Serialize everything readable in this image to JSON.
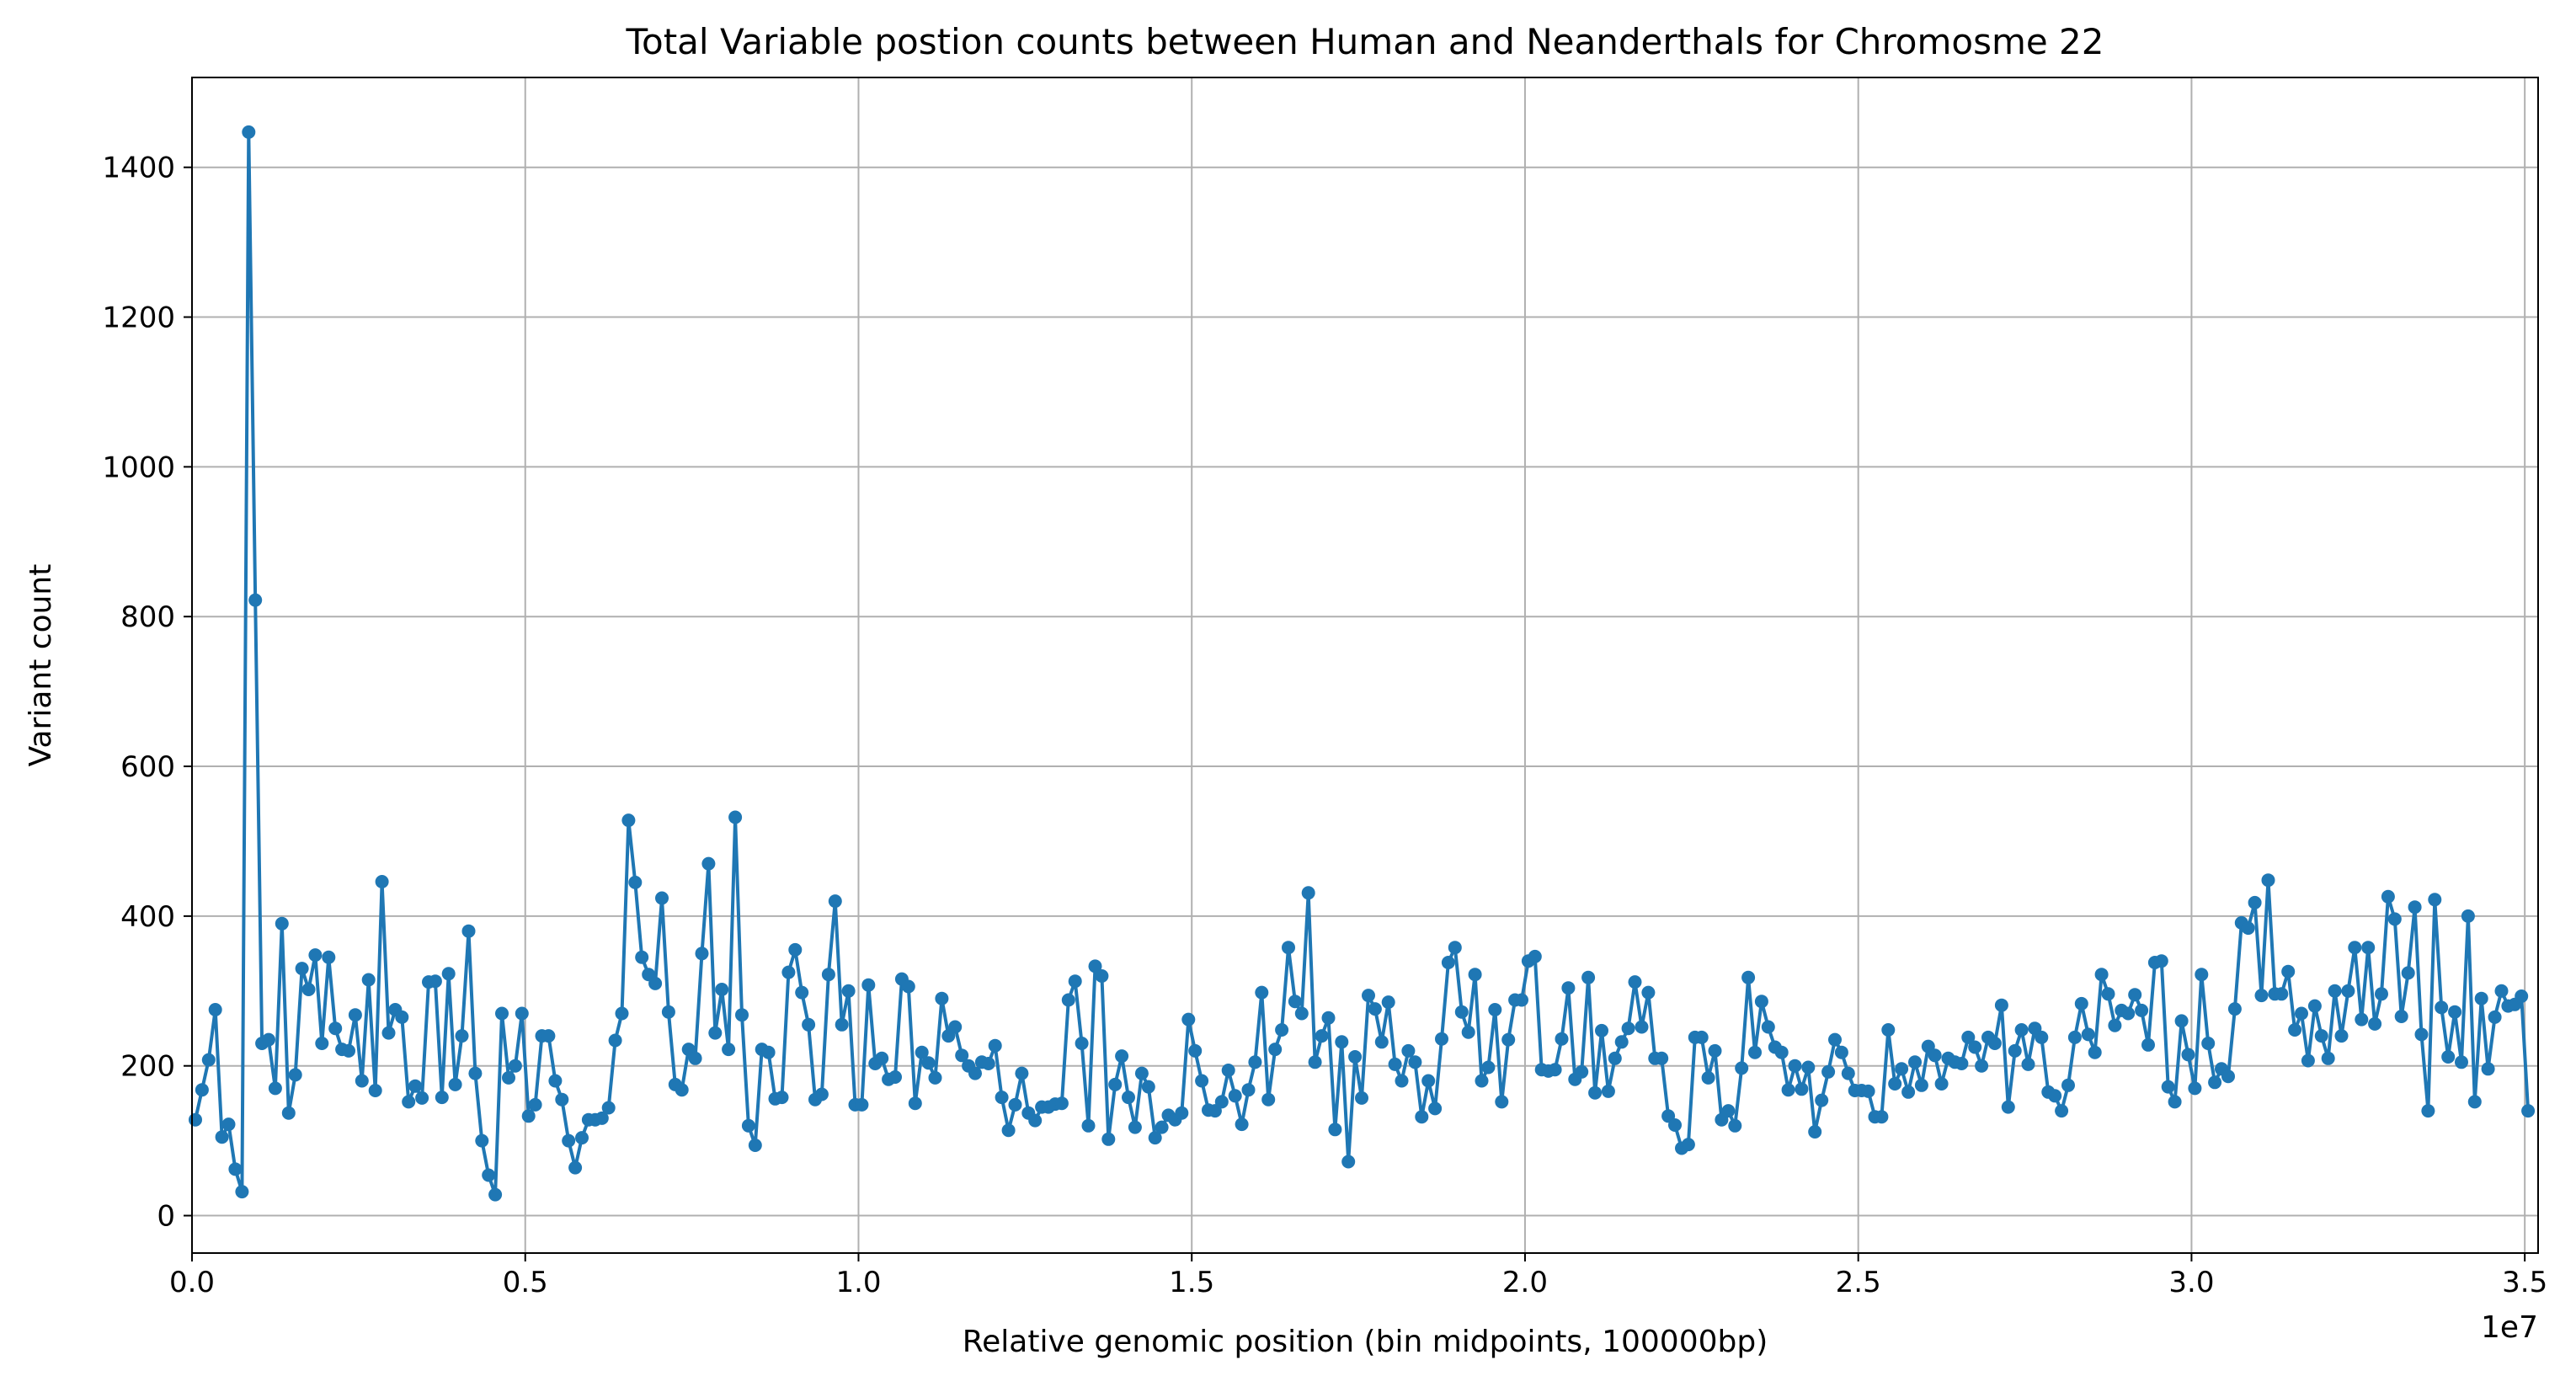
{
  "chart_data": {
    "type": "line",
    "title": "Total Variable postion counts between Human and Neanderthals for Chromosme 22",
    "xlabel": "Relative genomic position (bin midpoints, 100000bp)",
    "ylabel": "Variant count",
    "x_offset_label": "1e7",
    "xlim": [
      0,
      35200000
    ],
    "ylim": [
      -50,
      1520
    ],
    "grid": true,
    "line_color": "#1f77b4",
    "marker": "circle",
    "x_ticks": [
      {
        "value": 0,
        "label": "0.0"
      },
      {
        "value": 5000000,
        "label": "0.5"
      },
      {
        "value": 10000000,
        "label": "1.0"
      },
      {
        "value": 15000000,
        "label": "1.5"
      },
      {
        "value": 20000000,
        "label": "2.0"
      },
      {
        "value": 25000000,
        "label": "2.5"
      },
      {
        "value": 30000000,
        "label": "3.0"
      },
      {
        "value": 35000000,
        "label": "3.5"
      }
    ],
    "y_ticks": [
      {
        "value": 0,
        "label": "0"
      },
      {
        "value": 200,
        "label": "200"
      },
      {
        "value": 400,
        "label": "400"
      },
      {
        "value": 600,
        "label": "600"
      },
      {
        "value": 800,
        "label": "800"
      },
      {
        "value": 1000,
        "label": "1000"
      },
      {
        "value": 1200,
        "label": "1200"
      },
      {
        "value": 1400,
        "label": "1400"
      }
    ],
    "x_start": 50000,
    "x_step": 100000,
    "values": [
      128,
      168,
      208,
      275,
      105,
      122,
      62,
      32,
      1447,
      822,
      230,
      235,
      170,
      390,
      137,
      188,
      330,
      302,
      348,
      230,
      345,
      250,
      222,
      220,
      268,
      180,
      315,
      167,
      446,
      244,
      275,
      265,
      152,
      173,
      157,
      312,
      313,
      158,
      323,
      175,
      240,
      380,
      190,
      100,
      54,
      28,
      270,
      184,
      200,
      270,
      133,
      148,
      240,
      240,
      180,
      155,
      100,
      64,
      104,
      128,
      128,
      130,
      144,
      234,
      270,
      528,
      445,
      345,
      322,
      310,
      424,
      272,
      175,
      168,
      222,
      210,
      350,
      470,
      244,
      302,
      222,
      532,
      268,
      120,
      94,
      222,
      218,
      156,
      158,
      325,
      355,
      298,
      255,
      155,
      162,
      322,
      420,
      255,
      300,
      148,
      148,
      308,
      203,
      210,
      182,
      185,
      316,
      306,
      150,
      218,
      204,
      184,
      290,
      240,
      252,
      214,
      200,
      190,
      205,
      203,
      227,
      158,
      114,
      148,
      190,
      137,
      127,
      145,
      145,
      149,
      150,
      288,
      313,
      230,
      120,
      333,
      320,
      102,
      175,
      213,
      158,
      118,
      190,
      172,
      104,
      118,
      134,
      128,
      137,
      262,
      220,
      180,
      141,
      140,
      152,
      194,
      160,
      122,
      168,
      205,
      298,
      155,
      222,
      248,
      358,
      286,
      270,
      431,
      205,
      240,
      264,
      115,
      232,
      72,
      212,
      157,
      294,
      276,
      232,
      285,
      202,
      180,
      220,
      205,
      132,
      180,
      143,
      236,
      338,
      358,
      272,
      245,
      322,
      180,
      198,
      275,
      152,
      235,
      288,
      288,
      340,
      346,
      195,
      193,
      195,
      236,
      304,
      182,
      192,
      318,
      164,
      247,
      166,
      210,
      232,
      250,
      312,
      252,
      298,
      210,
      210,
      133,
      121,
      90,
      95,
      238,
      238,
      184,
      220,
      128,
      140,
      120,
      197,
      318,
      218,
      286,
      252,
      225,
      218,
      168,
      200,
      169,
      198,
      112,
      154,
      192,
      235,
      218,
      190,
      167,
      167,
      166,
      132,
      132,
      248,
      176,
      196,
      165,
      205,
      174,
      226,
      214,
      176,
      210,
      205,
      203,
      238,
      225,
      200,
      238,
      230,
      281,
      145,
      220,
      248,
      202,
      250,
      238,
      165,
      160,
      140,
      174,
      238,
      283,
      242,
      218,
      322,
      296,
      254,
      274,
      270,
      295,
      274,
      228,
      338,
      340,
      172,
      152,
      260,
      215,
      170,
      322,
      230,
      178,
      196,
      186,
      276,
      391,
      384,
      418,
      294,
      448,
      296,
      296,
      326,
      248,
      270,
      207,
      280,
      240,
      210,
      300,
      240,
      300,
      358,
      262,
      358,
      256,
      296,
      426,
      396,
      266,
      324,
      412,
      242,
      140,
      422,
      278,
      212,
      272,
      205,
      400,
      152,
      290,
      196,
      265,
      300,
      280,
      282,
      293,
      140
    ]
  }
}
